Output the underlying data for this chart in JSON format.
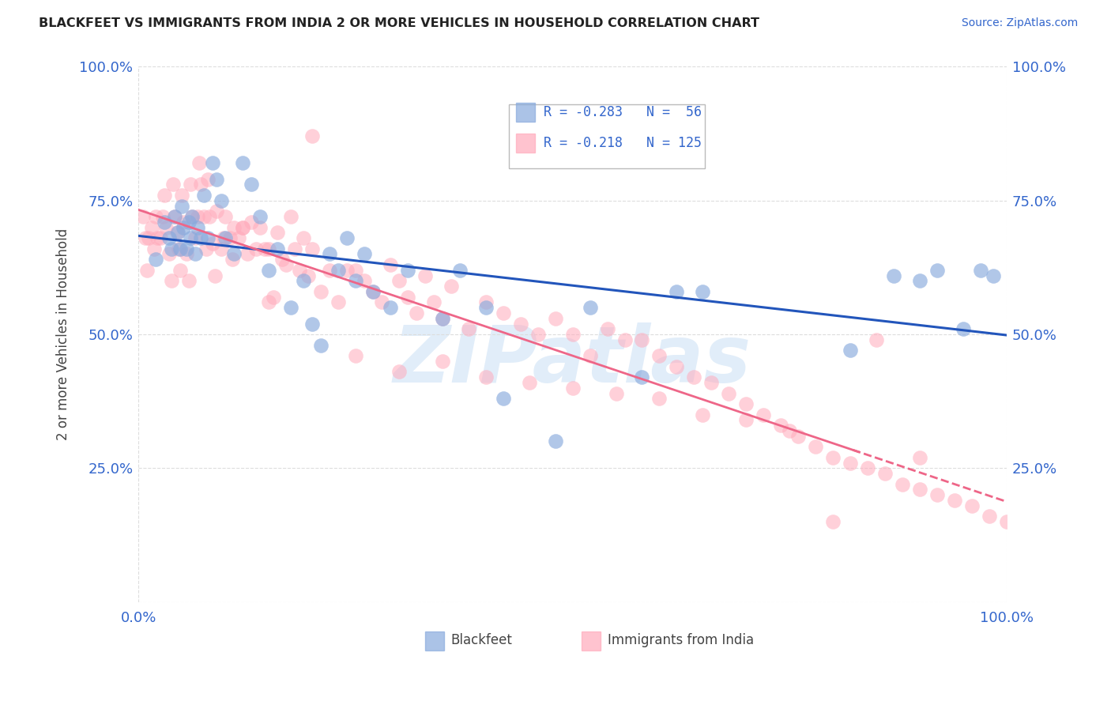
{
  "title": "BLACKFEET VS IMMIGRANTS FROM INDIA 2 OR MORE VEHICLES IN HOUSEHOLD CORRELATION CHART",
  "source": "Source: ZipAtlas.com",
  "ylabel": "2 or more Vehicles in Household",
  "legend_blue_label": "R = -0.283   N =  56",
  "legend_pink_label": "R = -0.218   N = 125",
  "blue_color": "#88AADD",
  "pink_color": "#FFAABB",
  "blue_line_color": "#2255BB",
  "pink_line_color": "#EE6688",
  "watermark": "ZIPatlas",
  "blue_x": [
    0.02,
    0.03,
    0.035,
    0.038,
    0.042,
    0.045,
    0.048,
    0.05,
    0.052,
    0.055,
    0.058,
    0.06,
    0.062,
    0.065,
    0.068,
    0.072,
    0.075,
    0.08,
    0.085,
    0.09,
    0.095,
    0.1,
    0.11,
    0.12,
    0.13,
    0.14,
    0.15,
    0.16,
    0.175,
    0.19,
    0.2,
    0.21,
    0.22,
    0.23,
    0.25,
    0.27,
    0.29,
    0.31,
    0.35,
    0.37,
    0.4,
    0.42,
    0.48,
    0.52,
    0.58,
    0.62,
    0.65,
    0.82,
    0.87,
    0.9,
    0.92,
    0.95,
    0.97,
    0.985,
    0.24,
    0.26
  ],
  "blue_y": [
    0.64,
    0.71,
    0.68,
    0.66,
    0.72,
    0.69,
    0.66,
    0.74,
    0.7,
    0.66,
    0.71,
    0.68,
    0.72,
    0.65,
    0.7,
    0.68,
    0.76,
    0.68,
    0.82,
    0.79,
    0.75,
    0.68,
    0.65,
    0.82,
    0.78,
    0.72,
    0.62,
    0.66,
    0.55,
    0.6,
    0.52,
    0.48,
    0.65,
    0.62,
    0.6,
    0.58,
    0.55,
    0.62,
    0.53,
    0.62,
    0.55,
    0.38,
    0.3,
    0.55,
    0.42,
    0.58,
    0.58,
    0.47,
    0.61,
    0.6,
    0.62,
    0.51,
    0.62,
    0.61,
    0.68,
    0.65
  ],
  "pink_x": [
    0.005,
    0.008,
    0.01,
    0.012,
    0.015,
    0.018,
    0.02,
    0.022,
    0.025,
    0.028,
    0.03,
    0.032,
    0.035,
    0.038,
    0.04,
    0.042,
    0.044,
    0.046,
    0.048,
    0.05,
    0.052,
    0.055,
    0.058,
    0.06,
    0.062,
    0.065,
    0.068,
    0.07,
    0.072,
    0.075,
    0.078,
    0.08,
    0.082,
    0.085,
    0.088,
    0.09,
    0.095,
    0.098,
    0.1,
    0.105,
    0.108,
    0.11,
    0.115,
    0.12,
    0.125,
    0.13,
    0.135,
    0.14,
    0.145,
    0.15,
    0.155,
    0.16,
    0.165,
    0.17,
    0.175,
    0.18,
    0.185,
    0.19,
    0.195,
    0.2,
    0.21,
    0.22,
    0.23,
    0.24,
    0.25,
    0.26,
    0.27,
    0.28,
    0.29,
    0.3,
    0.31,
    0.32,
    0.33,
    0.34,
    0.35,
    0.36,
    0.38,
    0.4,
    0.42,
    0.44,
    0.46,
    0.48,
    0.5,
    0.52,
    0.54,
    0.56,
    0.58,
    0.6,
    0.62,
    0.64,
    0.66,
    0.68,
    0.7,
    0.72,
    0.74,
    0.76,
    0.78,
    0.8,
    0.82,
    0.84,
    0.86,
    0.88,
    0.9,
    0.92,
    0.94,
    0.96,
    0.98,
    1.0,
    0.12,
    0.15,
    0.2,
    0.25,
    0.3,
    0.35,
    0.4,
    0.45,
    0.5,
    0.55,
    0.6,
    0.65,
    0.7,
    0.75,
    0.8,
    0.85,
    0.9
  ],
  "pink_y": [
    0.72,
    0.68,
    0.62,
    0.68,
    0.7,
    0.66,
    0.72,
    0.68,
    0.68,
    0.72,
    0.76,
    0.7,
    0.65,
    0.6,
    0.78,
    0.72,
    0.69,
    0.66,
    0.62,
    0.76,
    0.71,
    0.65,
    0.6,
    0.78,
    0.72,
    0.68,
    0.72,
    0.82,
    0.78,
    0.72,
    0.66,
    0.79,
    0.72,
    0.67,
    0.61,
    0.73,
    0.66,
    0.68,
    0.72,
    0.68,
    0.64,
    0.7,
    0.68,
    0.7,
    0.65,
    0.71,
    0.66,
    0.7,
    0.66,
    0.66,
    0.57,
    0.69,
    0.64,
    0.63,
    0.72,
    0.66,
    0.62,
    0.68,
    0.61,
    0.66,
    0.58,
    0.62,
    0.56,
    0.62,
    0.62,
    0.6,
    0.58,
    0.56,
    0.63,
    0.6,
    0.57,
    0.54,
    0.61,
    0.56,
    0.53,
    0.59,
    0.51,
    0.56,
    0.54,
    0.52,
    0.5,
    0.53,
    0.5,
    0.46,
    0.51,
    0.49,
    0.49,
    0.46,
    0.44,
    0.42,
    0.41,
    0.39,
    0.37,
    0.35,
    0.33,
    0.31,
    0.29,
    0.27,
    0.26,
    0.25,
    0.24,
    0.22,
    0.21,
    0.2,
    0.19,
    0.18,
    0.16,
    0.15,
    0.7,
    0.56,
    0.87,
    0.46,
    0.43,
    0.45,
    0.42,
    0.41,
    0.4,
    0.39,
    0.38,
    0.35,
    0.34,
    0.32,
    0.15,
    0.49,
    0.27
  ]
}
